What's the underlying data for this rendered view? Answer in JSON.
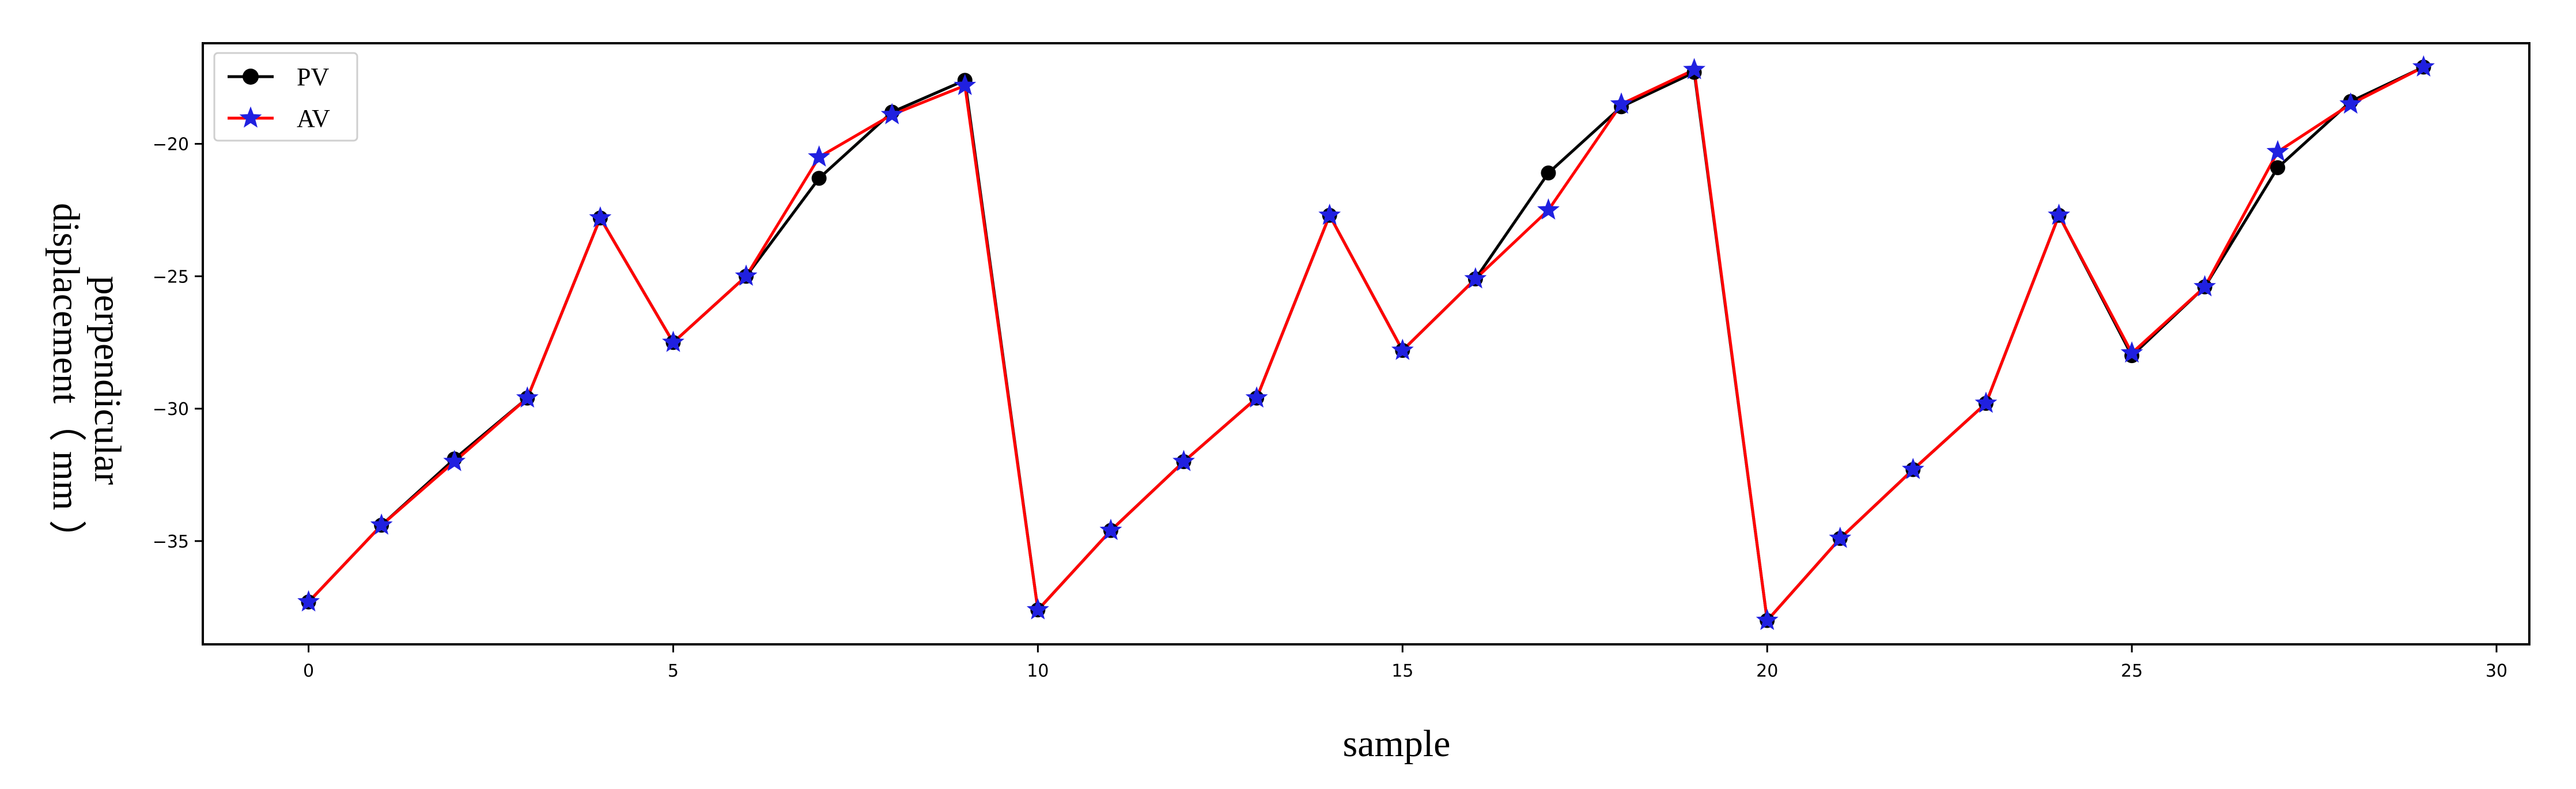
{
  "chart_data": {
    "type": "line",
    "title": "",
    "xlabel": "sample",
    "ylabel_lines": [
      "perpendicular",
      "displacement（ mm ）"
    ],
    "xlim": [
      -1.45,
      30.45
    ],
    "ylim": [
      -38.9,
      -16.2
    ],
    "xticks": [
      0,
      5,
      10,
      15,
      20,
      25,
      30
    ],
    "yticks": [
      -35,
      -30,
      -25,
      -20
    ],
    "xtick_labels": [
      "0",
      "5",
      "10",
      "15",
      "20",
      "25",
      "30"
    ],
    "ytick_labels": [
      "−35",
      "−30",
      "−25",
      "−20"
    ],
    "x": [
      0,
      1,
      2,
      3,
      4,
      5,
      6,
      7,
      8,
      9,
      10,
      11,
      12,
      13,
      14,
      15,
      16,
      17,
      18,
      19,
      20,
      21,
      22,
      23,
      24,
      25,
      26,
      27,
      28,
      29
    ],
    "grid": false,
    "legend_position": "top-left",
    "series": [
      {
        "name": "PV",
        "marker": "circle",
        "color": "#000000",
        "values": [
          -37.3,
          -34.4,
          -31.9,
          -29.6,
          -22.8,
          -27.5,
          -25.0,
          -21.3,
          -18.8,
          -17.6,
          -37.6,
          -34.6,
          -32.0,
          -29.6,
          -22.7,
          -27.8,
          -25.1,
          -21.1,
          -18.6,
          -17.3,
          -38.0,
          -34.9,
          -32.3,
          -29.8,
          -22.7,
          -28.0,
          -25.4,
          -20.9,
          -18.4,
          -17.1
        ]
      },
      {
        "name": "AV",
        "marker": "star",
        "color": "#ff0000",
        "marker_color": "#2020e0",
        "values": [
          -37.3,
          -34.4,
          -32.0,
          -29.6,
          -22.8,
          -27.5,
          -25.0,
          -20.5,
          -18.9,
          -17.8,
          -37.6,
          -34.6,
          -32.0,
          -29.6,
          -22.7,
          -27.8,
          -25.1,
          -22.5,
          -18.5,
          -17.2,
          -38.0,
          -34.9,
          -32.3,
          -29.8,
          -22.7,
          -27.9,
          -25.4,
          -20.3,
          -18.5,
          -17.1
        ]
      }
    ]
  }
}
